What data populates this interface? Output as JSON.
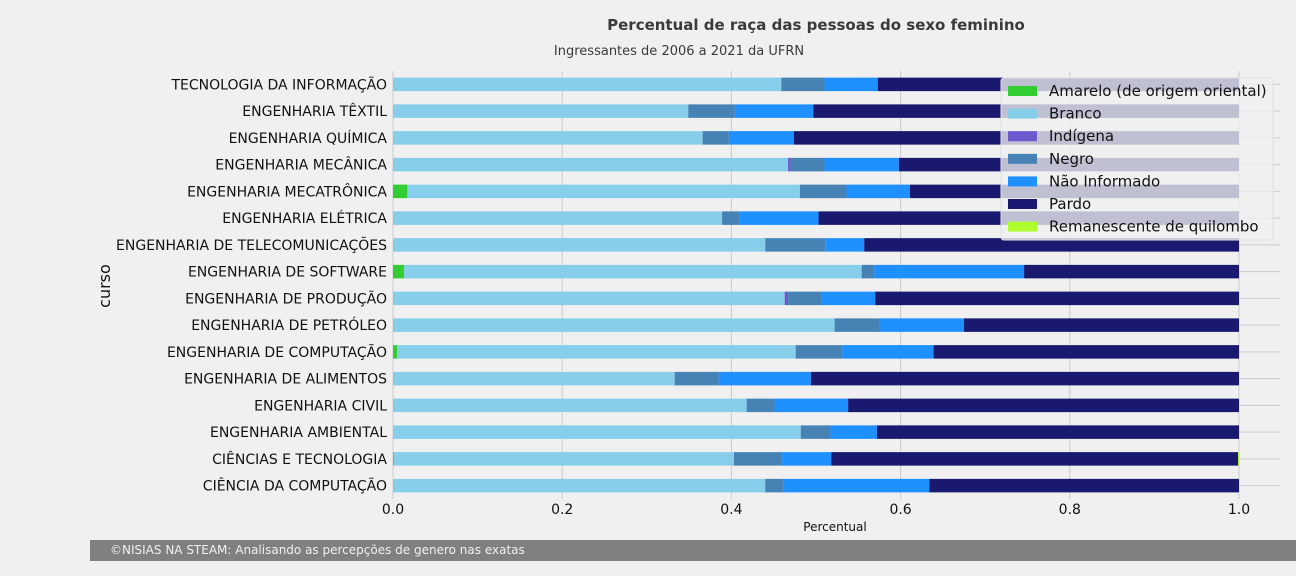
{
  "chart_data": {
    "type": "bar",
    "orientation": "horizontal",
    "stacked": true,
    "title": "Percentual de raça das pessoas do sexo feminino",
    "subtitle": "Ingressantes de 2006 a 2021 da UFRN",
    "xlabel": "Percentual",
    "ylabel": "curso",
    "xlim": [
      0,
      1
    ],
    "xticks": [
      "0.0",
      "0.2",
      "0.4",
      "0.6",
      "0.8",
      "1.0"
    ],
    "grid": true,
    "legend_position": "top-right",
    "categories": [
      "TECNOLOGIA DA INFORMAÇÃO",
      "ENGENHARIA TÊXTIL",
      "ENGENHARIA QUÍMICA",
      "ENGENHARIA MECÂNICA",
      "ENGENHARIA MECATRÔNICA",
      "ENGENHARIA ELÉTRICA",
      "ENGENHARIA DE TELECOMUNICAÇÕES",
      "ENGENHARIA DE SOFTWARE",
      "ENGENHARIA DE PRODUÇÃO",
      "ENGENHARIA DE PETRÓLEO",
      "ENGENHARIA DE COMPUTAÇÃO",
      "ENGENHARIA DE ALIMENTOS",
      "ENGENHARIA CIVIL",
      "ENGENHARIA AMBIENTAL",
      "CIÊNCIAS E TECNOLOGIA",
      "CIÊNCIA DA COMPUTAÇÃO"
    ],
    "series": [
      {
        "name": "Amarelo (de origem oriental)",
        "color": "#32cd32",
        "values": [
          0,
          0,
          0,
          0,
          0.017,
          0,
          0,
          0.013,
          0,
          0,
          0.005,
          0,
          0,
          0,
          0.001,
          0
        ]
      },
      {
        "name": "Branco",
        "color": "#87ceeb",
        "values": [
          0.459,
          0.349,
          0.366,
          0.467,
          0.464,
          0.389,
          0.44,
          0.541,
          0.463,
          0.522,
          0.471,
          0.333,
          0.418,
          0.482,
          0.402,
          0.44
        ]
      },
      {
        "name": "Indígena",
        "color": "#6a5acd",
        "values": [
          0,
          0,
          0,
          0.003,
          0,
          0,
          0,
          0,
          0.004,
          0,
          0,
          0,
          0,
          0,
          0,
          0
        ]
      },
      {
        "name": "Negro",
        "color": "#4682b4",
        "values": [
          0.051,
          0.055,
          0.031,
          0.04,
          0.055,
          0.021,
          0.071,
          0.015,
          0.039,
          0.053,
          0.055,
          0.052,
          0.033,
          0.035,
          0.057,
          0.022
        ]
      },
      {
        "name": "Não Informado",
        "color": "#1e90ff",
        "values": [
          0.063,
          0.093,
          0.077,
          0.088,
          0.075,
          0.093,
          0.046,
          0.177,
          0.064,
          0.1,
          0.108,
          0.109,
          0.087,
          0.055,
          0.058,
          0.172
        ]
      },
      {
        "name": "Pardo",
        "color": "#191970",
        "values": [
          0.427,
          0.503,
          0.526,
          0.402,
          0.389,
          0.497,
          0.443,
          0.254,
          0.43,
          0.325,
          0.361,
          0.506,
          0.462,
          0.428,
          0.481,
          0.366
        ]
      },
      {
        "name": "Remanescente de quilombo",
        "color": "#adff2f",
        "values": [
          0,
          0,
          0,
          0,
          0,
          0,
          0,
          0,
          0,
          0,
          0,
          0,
          0,
          0,
          0.001,
          0
        ]
      }
    ]
  },
  "footer": {
    "text": "©NISIAS NA STEAM: Analisando as percepções de genero nas exatas"
  }
}
